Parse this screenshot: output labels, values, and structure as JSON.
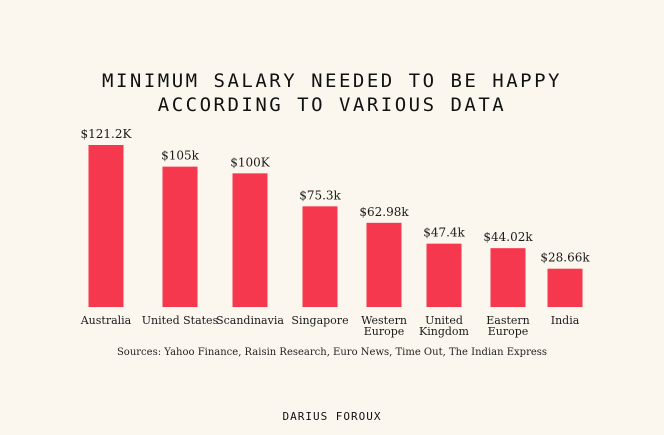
{
  "chart_data": {
    "type": "bar",
    "title_lines": [
      "MINIMUM SALARY NEEDED TO BE HAPPY",
      "ACCORDING TO VARIOUS DATA"
    ],
    "categories": [
      [
        "Australia"
      ],
      [
        "United States"
      ],
      [
        "Scandinavia"
      ],
      [
        "Singapore"
      ],
      [
        "Western",
        "Europe"
      ],
      [
        "United",
        "Kingdom"
      ],
      [
        "Eastern",
        "Europe"
      ],
      [
        "India"
      ]
    ],
    "values": [
      121.2,
      105,
      100,
      75.3,
      62.98,
      47.4,
      44.02,
      28.66
    ],
    "data_labels": [
      "$121.2K",
      "$105k",
      "$100K",
      "$75.3k",
      "$62.98k",
      "$47.4k",
      "$44.02k",
      "$28.66k"
    ],
    "unit": "thousand USD",
    "ylim": [
      0,
      121.2
    ],
    "bar_color": "#f6384f",
    "grid": false,
    "axes_visible": false,
    "legend": "none"
  },
  "sources": "Sources: Yahoo Finance, Raisin Research, Euro News, Time Out, The Indian Express",
  "signature": "DARIUS FOROUX"
}
